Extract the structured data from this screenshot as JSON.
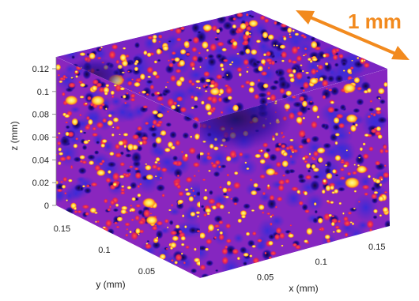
{
  "chart_data": {
    "type": "heatmap",
    "title": "",
    "colormap": "fire (black-blue-purple-red-orange-yellow)",
    "colors": {
      "low": "#1a0a4a",
      "mid_low": "#5a1ab0",
      "mid": "#9a2bc8",
      "mid_high": "#e0205a",
      "high": "#ff9a1a",
      "peak": "#fff36a",
      "scale_arrow": "#f28a1e"
    },
    "axes": {
      "x": {
        "label": "x (mm)",
        "ticks": [
          "0.05",
          "0.1",
          "0.15"
        ],
        "tick_values": [
          0.05,
          0.1,
          0.15
        ],
        "range": [
          0,
          0.17
        ]
      },
      "y": {
        "label": "y (mm)",
        "ticks": [
          "0.05",
          "0.1",
          "0.15"
        ],
        "tick_values": [
          0.05,
          0.1,
          0.15
        ],
        "range": [
          0,
          0.17
        ]
      },
      "z": {
        "label": "z (mm)",
        "ticks": [
          "0",
          "0.02",
          "0.04",
          "0.06",
          "0.08",
          "0.1",
          "0.12"
        ],
        "tick_values": [
          0,
          0.02,
          0.04,
          0.06,
          0.08,
          0.1,
          0.12
        ],
        "range": [
          0,
          0.13
        ]
      }
    },
    "annotations": [
      {
        "text": "1 mm",
        "kind": "double-headed scale arrow along top-back edge"
      }
    ]
  }
}
